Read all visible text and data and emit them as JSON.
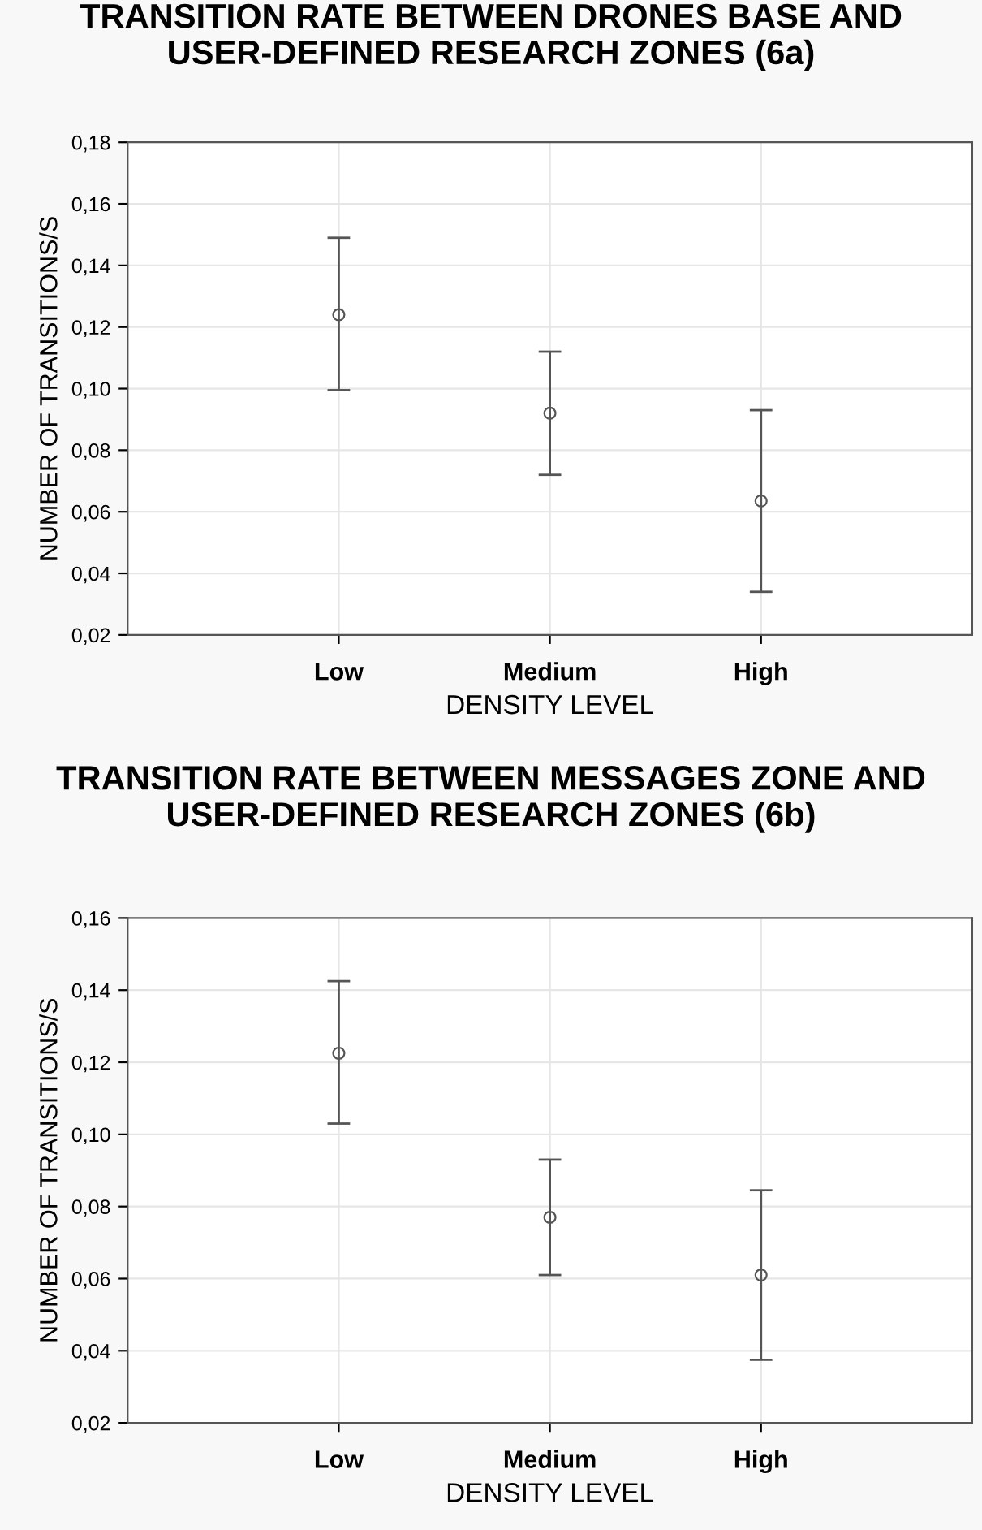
{
  "chart_data": [
    {
      "type": "scatter",
      "title": "TRANSITION RATE BETWEEN DRONES BASE AND USER-DEFINED RESEARCH ZONES (6a)",
      "xlabel": "DENSITY LEVEL",
      "ylabel": "NUMBER OF TRANSITIONS/S",
      "categories": [
        "Low",
        "Medium",
        "High"
      ],
      "series": [
        {
          "color": "#555555",
          "values": [
            0.124,
            0.092,
            0.0635
          ],
          "errors": [
            [
              0.0995,
              0.149
            ],
            [
              0.072,
              0.112
            ],
            [
              0.034,
              0.093
            ]
          ]
        }
      ],
      "ylim": [
        0.02,
        0.18
      ],
      "yticks": [
        {
          "value": 0.02,
          "label": "0,02"
        },
        {
          "value": 0.04,
          "label": "0,04"
        },
        {
          "value": 0.06,
          "label": "0,06"
        },
        {
          "value": 0.08,
          "label": "0,08"
        },
        {
          "value": 0.1,
          "label": "0,10"
        },
        {
          "value": 0.12,
          "label": "0,12"
        },
        {
          "value": 0.14,
          "label": "0,14"
        },
        {
          "value": 0.16,
          "label": "0,16"
        },
        {
          "value": 0.18,
          "label": "0,18"
        }
      ],
      "grid": true,
      "marker": "circle"
    },
    {
      "type": "scatter",
      "title": "TRANSITION RATE BETWEEN MESSAGES ZONE AND USER-DEFINED RESEARCH ZONES (6b)",
      "xlabel": "DENSITY LEVEL",
      "ylabel": "NUMBER OF TRANSITIONS/S",
      "categories": [
        "Low",
        "Medium",
        "High"
      ],
      "series": [
        {
          "color": "#555555",
          "values": [
            0.1225,
            0.077,
            0.061
          ],
          "errors": [
            [
              0.103,
              0.1425
            ],
            [
              0.061,
              0.093
            ],
            [
              0.0375,
              0.0845
            ]
          ]
        }
      ],
      "ylim": [
        0.02,
        0.16
      ],
      "yticks": [
        {
          "value": 0.02,
          "label": "0,02"
        },
        {
          "value": 0.04,
          "label": "0,04"
        },
        {
          "value": 0.06,
          "label": "0,06"
        },
        {
          "value": 0.08,
          "label": "0,08"
        },
        {
          "value": 0.1,
          "label": "0,10"
        },
        {
          "value": 0.12,
          "label": "0,12"
        },
        {
          "value": 0.14,
          "label": "0,14"
        },
        {
          "value": 0.16,
          "label": "0,16"
        }
      ],
      "grid": true,
      "marker": "circle"
    }
  ]
}
